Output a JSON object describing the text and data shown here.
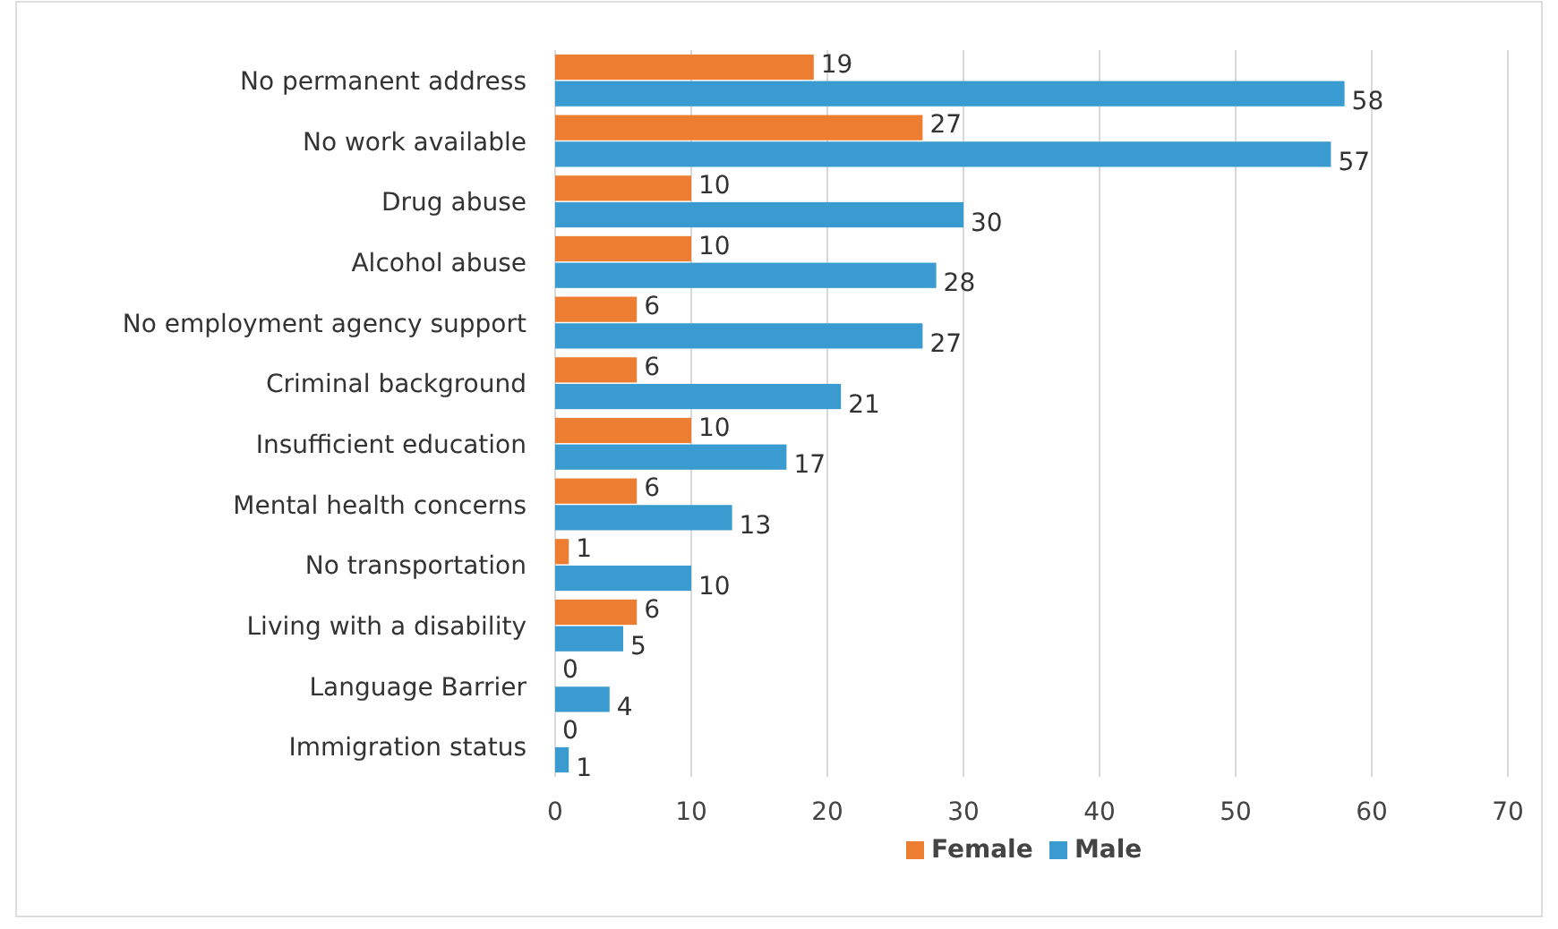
{
  "chart_data": {
    "type": "bar",
    "orientation": "horizontal",
    "categories": [
      "No permanent address",
      "No work available",
      "Drug abuse",
      "Alcohol abuse",
      "No employment agency support",
      "Criminal background",
      "Insufficient education",
      "Mental health concerns",
      "No transportation",
      "Living with a disability",
      "Language Barrier",
      "Immigration status"
    ],
    "series": [
      {
        "name": "Female",
        "color": "#ed7d31",
        "values": [
          19,
          27,
          10,
          10,
          6,
          6,
          10,
          6,
          1,
          6,
          0,
          0
        ]
      },
      {
        "name": "Male",
        "color": "#3a9bd0",
        "values": [
          58,
          57,
          30,
          28,
          27,
          21,
          17,
          13,
          10,
          5,
          4,
          1
        ]
      }
    ],
    "xlim": [
      0,
      70
    ],
    "xticks": [
      0,
      10,
      20,
      30,
      40,
      50,
      60,
      70
    ],
    "grid": "x",
    "legend": "bottom",
    "data_labels": true
  }
}
